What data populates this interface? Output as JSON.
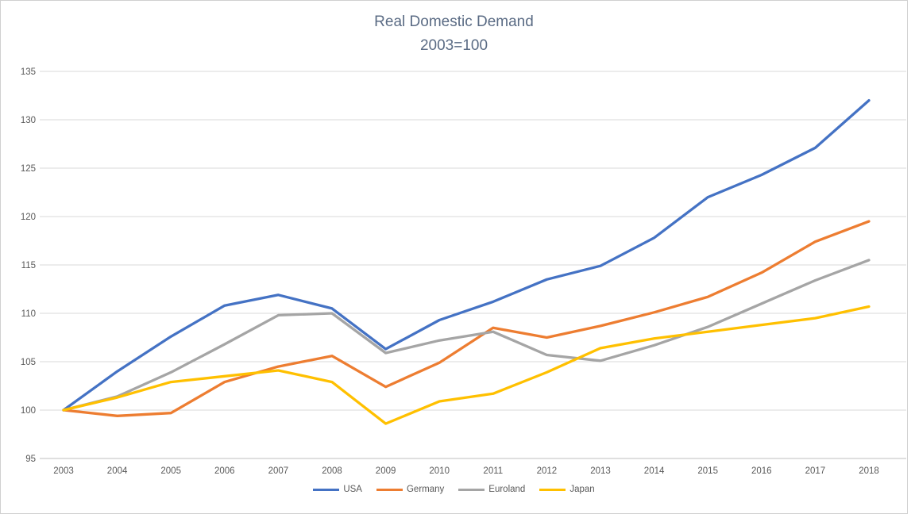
{
  "chart_data": {
    "type": "line",
    "title": "Real Domestic Demand",
    "subtitle": "2003=100",
    "x": [
      2003,
      2004,
      2005,
      2006,
      2007,
      2008,
      2009,
      2010,
      2011,
      2012,
      2013,
      2014,
      2015,
      2016,
      2017,
      2018
    ],
    "series": [
      {
        "name": "USA",
        "color": "#4472C4",
        "values": [
          100,
          104.0,
          107.6,
          110.8,
          111.9,
          110.5,
          106.3,
          109.3,
          111.2,
          113.5,
          114.9,
          117.8,
          122.0,
          124.3,
          127.1,
          132.0
        ]
      },
      {
        "name": "Germany",
        "color": "#ED7D31",
        "values": [
          100,
          99.4,
          99.7,
          102.9,
          104.5,
          105.6,
          102.4,
          104.9,
          108.5,
          107.5,
          108.7,
          110.1,
          111.7,
          114.2,
          117.4,
          119.5
        ]
      },
      {
        "name": "Euroland",
        "color": "#A5A5A5",
        "values": [
          100,
          101.4,
          103.9,
          106.8,
          109.8,
          110.0,
          105.9,
          107.2,
          108.1,
          105.7,
          105.1,
          106.7,
          108.6,
          111.0,
          113.4,
          115.5
        ]
      },
      {
        "name": "Japan",
        "color": "#FFC000",
        "values": [
          100,
          101.3,
          102.9,
          103.5,
          104.1,
          102.9,
          98.6,
          100.9,
          101.7,
          103.9,
          106.4,
          107.4,
          108.1,
          108.8,
          109.5,
          110.7
        ]
      }
    ],
    "ylim": [
      95,
      135
    ],
    "ytick_step": 5,
    "yticks": [
      "95",
      "100",
      "105",
      "110",
      "115",
      "120",
      "125",
      "130",
      "135"
    ],
    "grid": true,
    "legend_position": "bottom",
    "gridline_color": "#d9d9d9",
    "axis_line_color": "#bfbfbf",
    "tick_label_color": "#595959",
    "title_color": "#5a6b84"
  }
}
